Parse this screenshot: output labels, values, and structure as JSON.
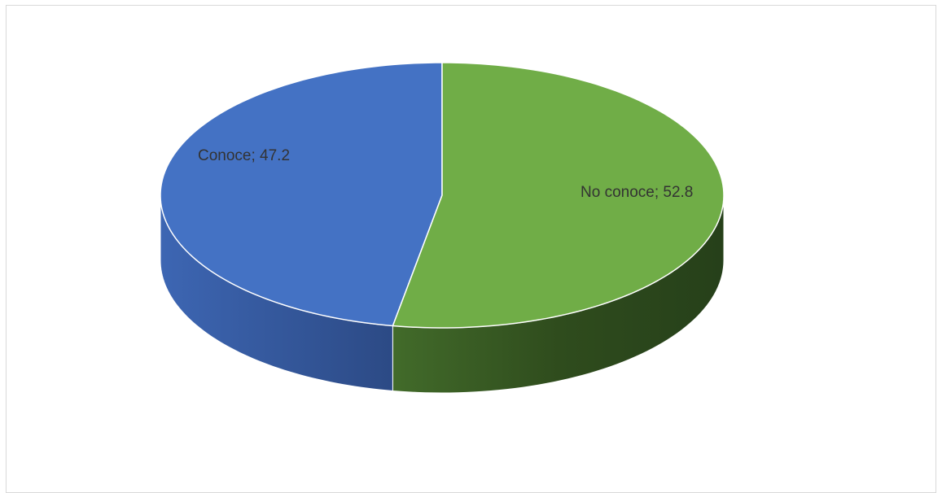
{
  "chart_data": {
    "type": "pie",
    "style": "3d",
    "categories": [
      "Conoce",
      "No conoce"
    ],
    "values": [
      47.2,
      52.8
    ],
    "colors": [
      "#4472c4",
      "#70ad47"
    ],
    "side_colors": [
      "#2f4f8c",
      "#33521f"
    ],
    "data_labels": [
      "Conoce; 47.2",
      "No conoce; 52.8"
    ],
    "legend": "none",
    "title": ""
  }
}
